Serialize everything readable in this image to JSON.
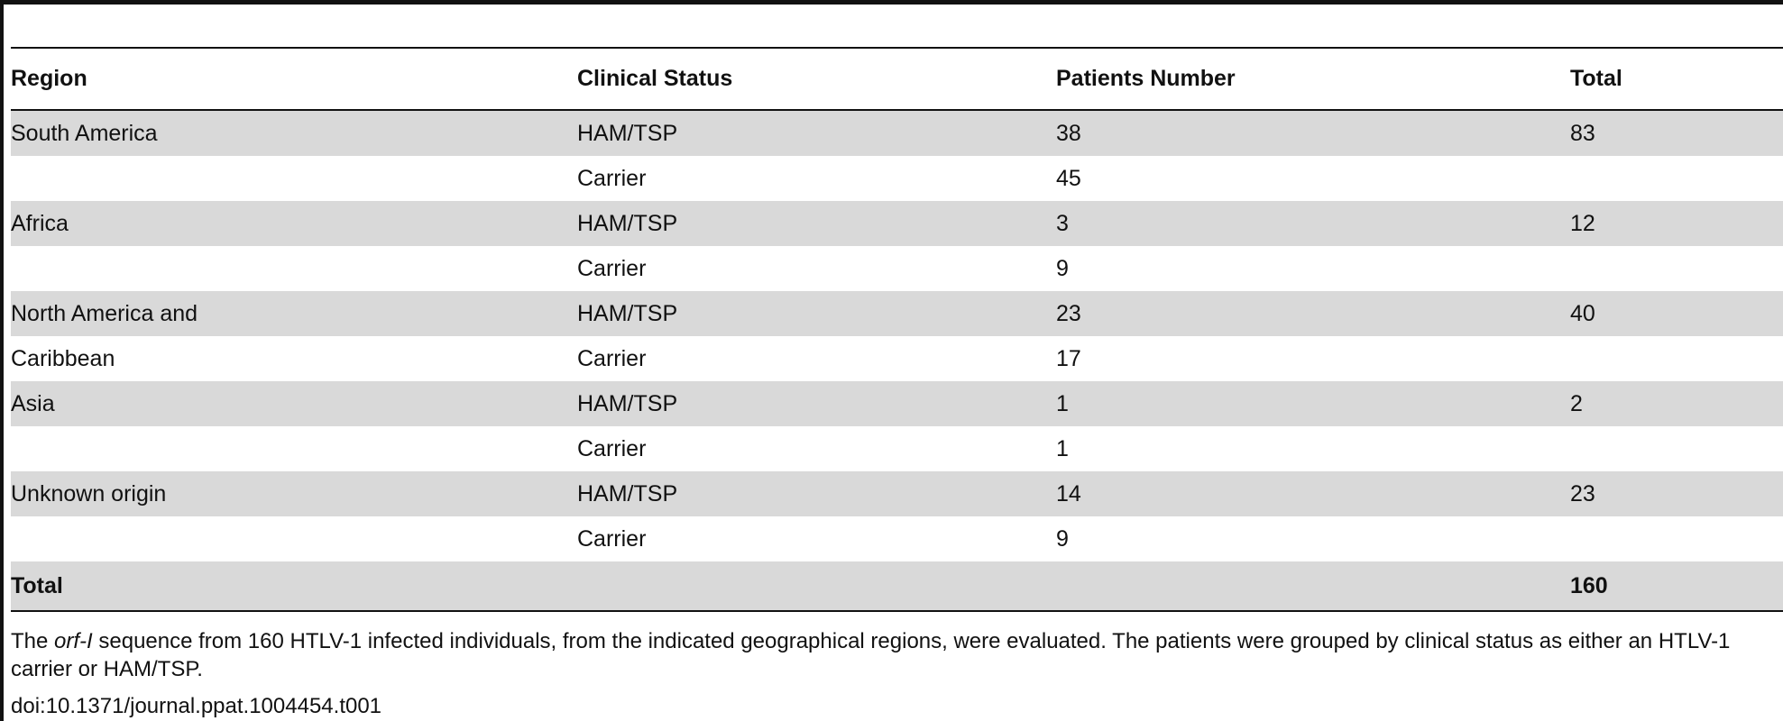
{
  "table": {
    "headers": {
      "region": "Region",
      "status": "Clinical Status",
      "patients": "Patients Number",
      "total": "Total"
    },
    "rows": [
      {
        "region": "South America",
        "status": "HAM/TSP",
        "patients": "38",
        "total": "83"
      },
      {
        "region": "",
        "status": "Carrier",
        "patients": "45",
        "total": ""
      },
      {
        "region": "Africa",
        "status": "HAM/TSP",
        "patients": "3",
        "total": "12"
      },
      {
        "region": "",
        "status": "Carrier",
        "patients": "9",
        "total": ""
      },
      {
        "region": "North America and",
        "status": "HAM/TSP",
        "patients": "23",
        "total": "40"
      },
      {
        "region": "Caribbean",
        "status": "Carrier",
        "patients": "17",
        "total": ""
      },
      {
        "region": "Asia",
        "status": "HAM/TSP",
        "patients": "1",
        "total": "2"
      },
      {
        "region": "",
        "status": "Carrier",
        "patients": "1",
        "total": ""
      },
      {
        "region": "Unknown origin",
        "status": "HAM/TSP",
        "patients": "14",
        "total": "23"
      },
      {
        "region": "",
        "status": "Carrier",
        "patients": "9",
        "total": ""
      }
    ],
    "total_row": {
      "label": "Total",
      "value": "160"
    }
  },
  "footnote": {
    "before_italic": "The ",
    "italic": "orf-I",
    "after_italic": " sequence from 160 HTLV-1 infected individuals, from the indicated geographical regions, were evaluated. The patients were grouped by clinical status as either an HTLV-1 carrier or HAM/TSP."
  },
  "doi": "doi:10.1371/journal.ppat.1004454.t001",
  "colors": {
    "shade": "#d9d9d9",
    "rule": "#111111"
  }
}
